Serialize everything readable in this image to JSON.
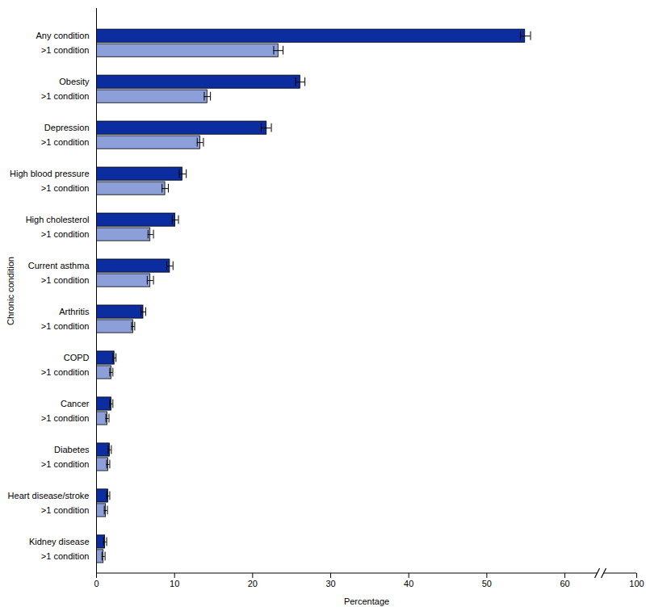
{
  "chart_data": {
    "type": "bar",
    "orientation": "horizontal",
    "x_label": "Percentage",
    "y_label": "Chronic condition",
    "categories": [
      "Any condition",
      ">1 condition",
      "Obesity",
      ">1 condition",
      "Depression",
      ">1 condition",
      "High blood pressure",
      ">1 condition",
      "High cholesterol",
      ">1 condition",
      "Current asthma",
      ">1 condition",
      "Arthritis",
      ">1 condition",
      "COPD",
      ">1 condition",
      "Cancer",
      ">1 condition",
      "Diabetes",
      ">1 condition",
      "Heart disease/stroke",
      ">1 condition",
      "Kidney disease",
      ">1 condition"
    ],
    "values": [
      54.9,
      23.3,
      26.1,
      14.2,
      21.8,
      13.3,
      11.0,
      8.8,
      10.1,
      6.9,
      9.4,
      6.9,
      6.0,
      4.7,
      2.3,
      1.9,
      1.9,
      1.4,
      1.7,
      1.5,
      1.5,
      1.2,
      1.1,
      0.9
    ],
    "error_lower": [
      54.3,
      22.7,
      25.5,
      13.8,
      21.1,
      12.9,
      10.6,
      8.4,
      9.7,
      6.6,
      9.0,
      6.5,
      5.7,
      4.5,
      2.1,
      1.7,
      1.7,
      1.2,
      1.5,
      1.3,
      1.3,
      1.0,
      0.9,
      0.7
    ],
    "error_upper": [
      55.6,
      23.9,
      26.7,
      14.6,
      22.4,
      13.7,
      11.5,
      9.2,
      10.5,
      7.3,
      9.8,
      7.3,
      6.3,
      4.9,
      2.5,
      2.1,
      2.1,
      1.6,
      1.9,
      1.7,
      1.7,
      1.4,
      1.3,
      1.1
    ],
    "colors": [
      "#0b2d9f",
      "#8c9fd8",
      "#0b2d9f",
      "#8c9fd8",
      "#0b2d9f",
      "#8c9fd8",
      "#0b2d9f",
      "#8c9fd8",
      "#0b2d9f",
      "#8c9fd8",
      "#0b2d9f",
      "#8c9fd8",
      "#0b2d9f",
      "#8c9fd8",
      "#0b2d9f",
      "#8c9fd8",
      "#0b2d9f",
      "#8c9fd8",
      "#0b2d9f",
      "#8c9fd8",
      "#0b2d9f",
      "#8c9fd8",
      "#0b2d9f",
      "#8c9fd8"
    ],
    "xlim": [
      0,
      100
    ],
    "xticks": [
      0,
      10,
      20,
      30,
      40,
      50,
      60,
      100
    ],
    "grid": false
  }
}
